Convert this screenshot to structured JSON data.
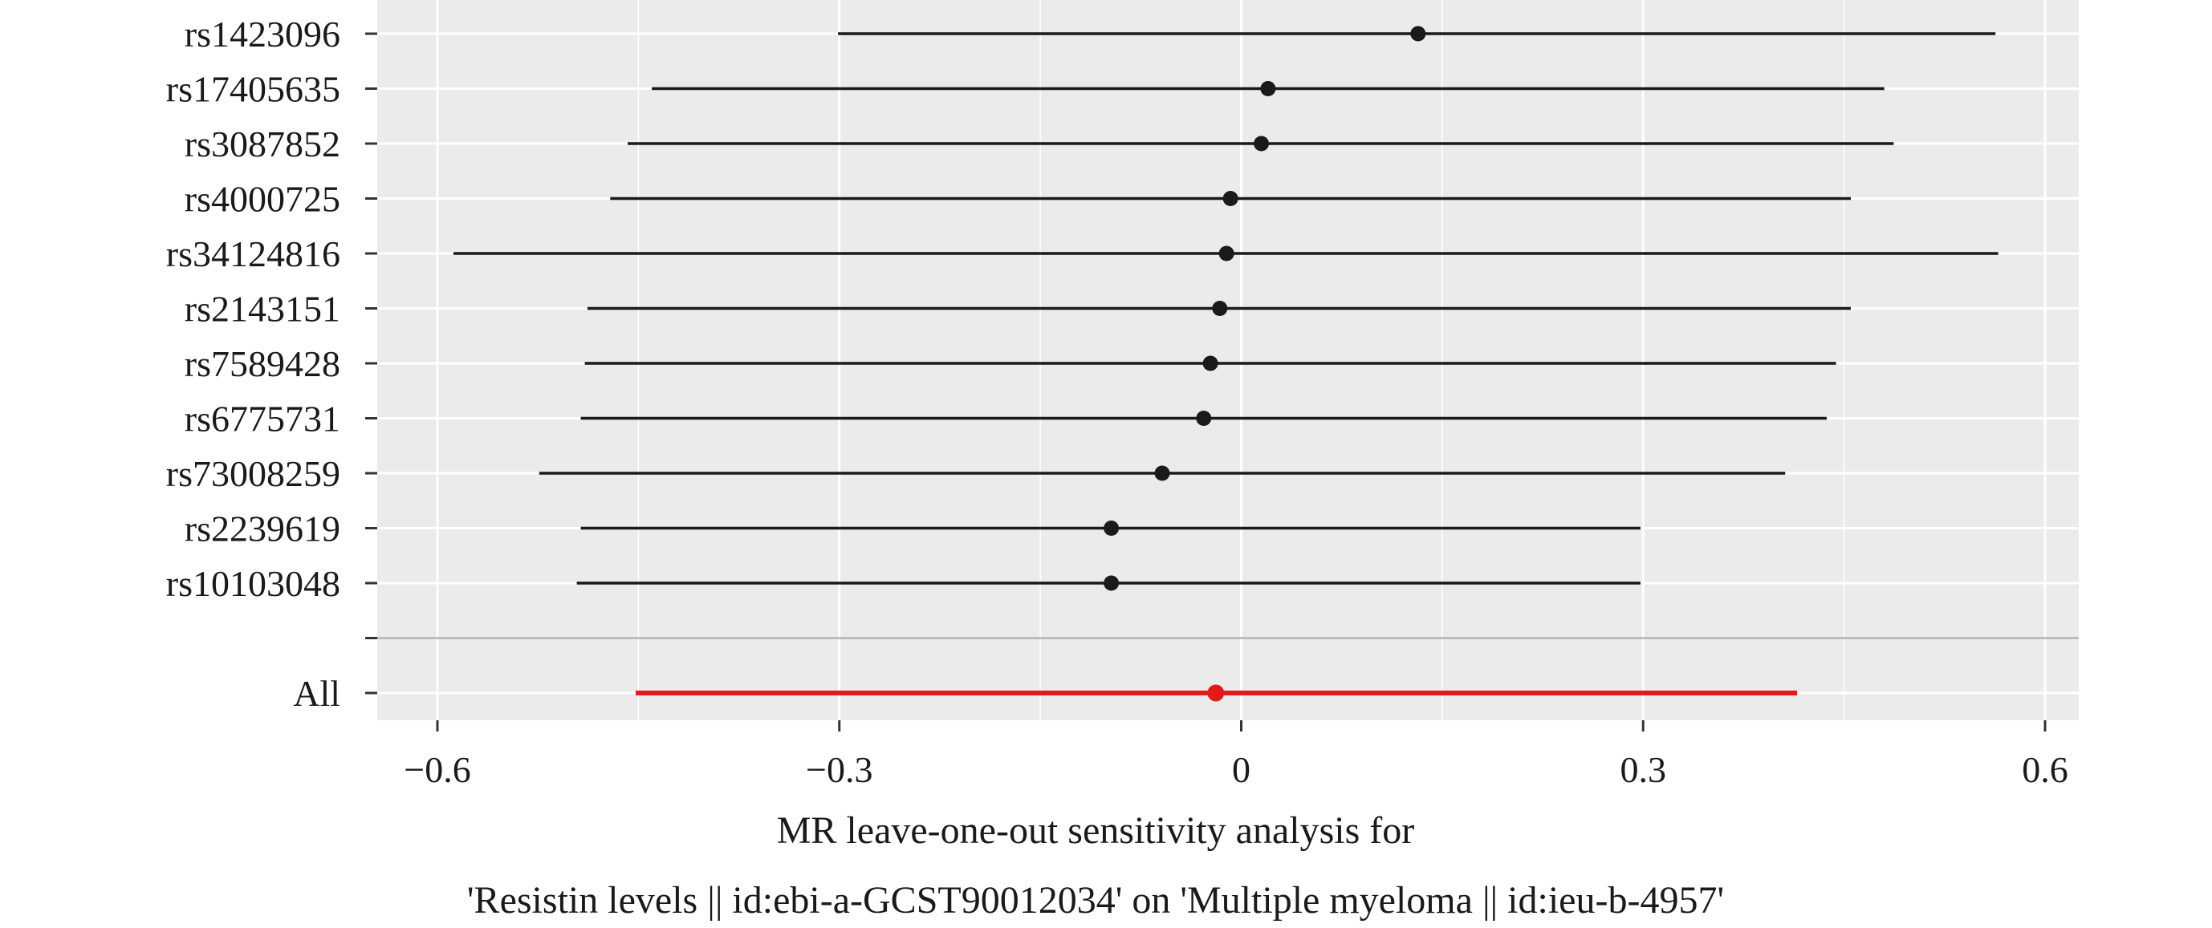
{
  "chart_data": {
    "type": "forest",
    "title": "",
    "xlabel_lines": [
      "MR leave-one-out sensitivity analysis for",
      "'Resistin levels || id:ebi-a-GCST90012034' on 'Multiple myeloma || id:ieu-b-4957'"
    ],
    "ylabel": "",
    "xlim": [
      -0.64,
      0.61
    ],
    "xticks": [
      -0.6,
      -0.3,
      0,
      0.3,
      0.6
    ],
    "xtick_labels": [
      "−0.6",
      "−0.3",
      "0",
      "0.3",
      "0.6"
    ],
    "grid": true,
    "separator_after_snps": true,
    "rows": [
      {
        "label": "rs1423096",
        "b": 0.132,
        "lo": -0.301,
        "hi": 0.563
      },
      {
        "label": "rs17405635",
        "b": 0.02,
        "lo": -0.44,
        "hi": 0.48
      },
      {
        "label": "rs3087852",
        "b": 0.015,
        "lo": -0.458,
        "hi": 0.487
      },
      {
        "label": "rs4000725",
        "b": -0.008,
        "lo": -0.471,
        "hi": 0.455
      },
      {
        "label": "rs34124816",
        "b": -0.011,
        "lo": -0.588,
        "hi": 0.565
      },
      {
        "label": "rs2143151",
        "b": -0.016,
        "lo": -0.488,
        "hi": 0.455
      },
      {
        "label": "rs7589428",
        "b": -0.023,
        "lo": -0.49,
        "hi": 0.444
      },
      {
        "label": "rs6775731",
        "b": -0.028,
        "lo": -0.493,
        "hi": 0.437
      },
      {
        "label": "rs73008259",
        "b": -0.059,
        "lo": -0.524,
        "hi": 0.406
      },
      {
        "label": "rs2239619",
        "b": -0.097,
        "lo": -0.493,
        "hi": 0.298
      },
      {
        "label": "rs10103048",
        "b": -0.097,
        "lo": -0.496,
        "hi": 0.298
      }
    ],
    "overall": {
      "label": "All",
      "b": -0.019,
      "lo": -0.452,
      "hi": 0.415
    },
    "colors": {
      "panel": "#ebebeb",
      "grid": "#ffffff",
      "snp": "#1a1a1a",
      "overall": "#e31a1c",
      "separator": "#bdbdbd",
      "axis_ticks": "#333333"
    }
  }
}
